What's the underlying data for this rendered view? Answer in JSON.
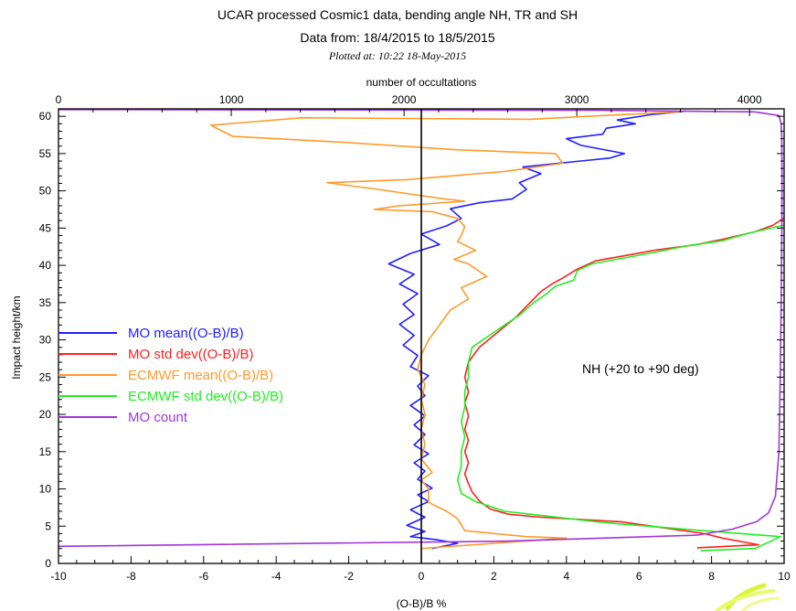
{
  "chart_data": {
    "type": "line",
    "title": "UCAR processed Cosmic1 data, bending angle NH, TR and SH",
    "subtitle": "Data from: 18/4/2015 to 18/5/2015",
    "plotted_at": "Plotted at: 10:22 18-May-2015",
    "xlabel": "(O-B)/B %",
    "ylabel": "Impact height/km",
    "x2label": "number of occultations",
    "xlim": [
      -10,
      10
    ],
    "ylim": [
      0,
      61
    ],
    "x2lim": [
      0,
      4200
    ],
    "xticks": [
      "-10",
      "-8",
      "-6",
      "-4",
      "-2",
      "0",
      "2",
      "4",
      "6",
      "8",
      "10"
    ],
    "yticks": [
      "0",
      "5",
      "10",
      "15",
      "20",
      "25",
      "30",
      "35",
      "40",
      "45",
      "50",
      "55",
      "60"
    ],
    "x2ticks": [
      "0",
      "1000",
      "2000",
      "3000",
      "4000"
    ],
    "vertical_zero_line": 0,
    "annotation": "NH (+20 to +90 deg)",
    "legend_position": "left",
    "series": [
      {
        "name": "MO mean((O-B)/B)",
        "color": "#2020ff",
        "axis": "bottom",
        "points": [
          [
            0.3,
            2
          ],
          [
            1.0,
            2.7
          ],
          [
            0.4,
            3.2
          ],
          [
            -0.3,
            3.6
          ],
          [
            0.1,
            4.3
          ],
          [
            -0.4,
            5.1
          ],
          [
            0.1,
            6.2
          ],
          [
            -0.3,
            7.2
          ],
          [
            0.2,
            8.3
          ],
          [
            -0.1,
            9.2
          ],
          [
            0.3,
            10.1
          ],
          [
            -0.1,
            11.3
          ],
          [
            0.1,
            12.4
          ],
          [
            -0.2,
            13.5
          ],
          [
            0.2,
            14.7
          ],
          [
            -0.2,
            15.9
          ],
          [
            0.1,
            17.3
          ],
          [
            -0.2,
            18.6
          ],
          [
            0.1,
            19.8
          ],
          [
            -0.3,
            21.2
          ],
          [
            0.1,
            22.5
          ],
          [
            -0.1,
            23.8
          ],
          [
            0.2,
            25.2
          ],
          [
            -0.3,
            26.4
          ],
          [
            -0.1,
            27.9
          ],
          [
            -0.5,
            29.3
          ],
          [
            -0.2,
            30.6
          ],
          [
            -0.6,
            32.1
          ],
          [
            -0.2,
            33.4
          ],
          [
            -0.5,
            34.8
          ],
          [
            -0.1,
            36.2
          ],
          [
            -0.6,
            37.5
          ],
          [
            -0.2,
            38.8
          ],
          [
            -0.9,
            40.2
          ],
          [
            -0.3,
            41.6
          ],
          [
            0.5,
            42.8
          ],
          [
            0.0,
            44.2
          ],
          [
            0.7,
            45.3
          ],
          [
            1.1,
            46.3
          ],
          [
            0.8,
            47.6
          ],
          [
            1.6,
            48.4
          ],
          [
            2.5,
            48.9
          ],
          [
            2.9,
            50.2
          ],
          [
            2.7,
            51.1
          ],
          [
            3.3,
            52.3
          ],
          [
            2.8,
            53.2
          ],
          [
            4.4,
            54.0
          ],
          [
            5.2,
            54.4
          ],
          [
            5.6,
            55.0
          ],
          [
            4.4,
            56.1
          ],
          [
            4.0,
            57.0
          ],
          [
            5.0,
            57.6
          ],
          [
            5.1,
            58.4
          ],
          [
            5.9,
            59.0
          ],
          [
            5.4,
            59.5
          ],
          [
            6.3,
            60.2
          ],
          [
            7.3,
            60.7
          ]
        ]
      },
      {
        "name": "MO std dev((O-B)/B)",
        "color": "#ff2020",
        "axis": "bottom",
        "points": [
          [
            7.6,
            2.1
          ],
          [
            9.3,
            2.5
          ],
          [
            8.3,
            3.4
          ],
          [
            7.8,
            4.0
          ],
          [
            5.5,
            5.6
          ],
          [
            3.3,
            6.2
          ],
          [
            2.4,
            6.6
          ],
          [
            1.9,
            7.3
          ],
          [
            1.6,
            8.4
          ],
          [
            1.4,
            9.6
          ],
          [
            1.3,
            10.7
          ],
          [
            1.2,
            12.0
          ],
          [
            1.3,
            13.5
          ],
          [
            1.2,
            15.0
          ],
          [
            1.3,
            16.5
          ],
          [
            1.2,
            18.0
          ],
          [
            1.3,
            19.8
          ],
          [
            1.2,
            21.5
          ],
          [
            1.3,
            23.0
          ],
          [
            1.2,
            25.0
          ],
          [
            1.3,
            27.0
          ],
          [
            1.6,
            29.0
          ],
          [
            2.1,
            31.0
          ],
          [
            2.6,
            33.0
          ],
          [
            3.0,
            35.0
          ],
          [
            3.3,
            36.5
          ],
          [
            3.6,
            37.5
          ],
          [
            3.9,
            38.3
          ],
          [
            4.3,
            39.5
          ],
          [
            4.8,
            40.6
          ],
          [
            5.5,
            41.2
          ],
          [
            6.4,
            42.0
          ],
          [
            7.6,
            42.8
          ],
          [
            8.3,
            43.5
          ],
          [
            9.2,
            44.5
          ],
          [
            9.7,
            45.4
          ],
          [
            10.0,
            46.4
          ]
        ]
      },
      {
        "name": "ECMWF mean((O-B)/B)",
        "color": "#ff9a2a",
        "axis": "bottom",
        "points": [
          [
            0.0,
            2.0
          ],
          [
            4.0,
            3.4
          ],
          [
            2.9,
            3.6
          ],
          [
            1.2,
            4.4
          ],
          [
            1.0,
            6.0
          ],
          [
            0.7,
            7.0
          ],
          [
            0.2,
            8.2
          ],
          [
            0.2,
            10.0
          ],
          [
            0.0,
            11.2
          ],
          [
            0.3,
            12.2
          ],
          [
            0.0,
            14.0
          ],
          [
            0.1,
            16.0
          ],
          [
            0.0,
            18.0
          ],
          [
            0.1,
            20.0
          ],
          [
            0.0,
            22.0
          ],
          [
            0.1,
            24.0
          ],
          [
            -0.1,
            26.0
          ],
          [
            0.0,
            28.0
          ],
          [
            0.2,
            30.0
          ],
          [
            0.5,
            32.0
          ],
          [
            0.8,
            34.0
          ],
          [
            1.3,
            35.5
          ],
          [
            1.1,
            37.0
          ],
          [
            1.8,
            38.5
          ],
          [
            1.3,
            40.2
          ],
          [
            0.9,
            40.8
          ],
          [
            1.5,
            42.0
          ],
          [
            1.0,
            43.2
          ],
          [
            1.1,
            44.0
          ],
          [
            1.2,
            45.2
          ],
          [
            1.0,
            46.3
          ],
          [
            0.3,
            47.2
          ],
          [
            -1.3,
            47.5
          ],
          [
            -0.6,
            48.0
          ],
          [
            1.2,
            48.6
          ],
          [
            0.5,
            49.0
          ],
          [
            -1.2,
            50.2
          ],
          [
            -2.6,
            51.1
          ],
          [
            -0.4,
            51.5
          ],
          [
            2.3,
            52.6
          ],
          [
            3.9,
            53.7
          ],
          [
            3.7,
            55.0
          ],
          [
            1.0,
            55.5
          ],
          [
            -2.1,
            56.5
          ],
          [
            -5.2,
            57.3
          ],
          [
            -5.8,
            58.8
          ],
          [
            -3.3,
            59.8
          ],
          [
            3.0,
            59.6
          ],
          [
            5.0,
            60.1
          ],
          [
            7.1,
            60.6
          ]
        ]
      },
      {
        "name": "ECMWF std dev((O-B)/B)",
        "color": "#22ee22",
        "axis": "bottom",
        "points": [
          [
            7.7,
            1.7
          ],
          [
            9.2,
            2.0
          ],
          [
            9.9,
            3.6
          ],
          [
            7.5,
            4.5
          ],
          [
            5.0,
            5.5
          ],
          [
            3.4,
            6.4
          ],
          [
            2.3,
            7.0
          ],
          [
            1.5,
            8.3
          ],
          [
            1.1,
            9.4
          ],
          [
            1.0,
            11.2
          ],
          [
            1.1,
            13.0
          ],
          [
            1.1,
            15.0
          ],
          [
            1.2,
            17.0
          ],
          [
            1.1,
            19.0
          ],
          [
            1.2,
            21.0
          ],
          [
            1.2,
            23.0
          ],
          [
            1.3,
            25.0
          ],
          [
            1.3,
            27.0
          ],
          [
            1.4,
            29.0
          ],
          [
            2.0,
            31.0
          ],
          [
            2.3,
            32.0
          ],
          [
            2.7,
            33.3
          ],
          [
            3.1,
            35.0
          ],
          [
            3.4,
            36.0
          ],
          [
            3.7,
            37.2
          ],
          [
            4.2,
            38.0
          ],
          [
            4.3,
            39.3
          ],
          [
            4.7,
            40.2
          ],
          [
            5.6,
            41.0
          ],
          [
            6.5,
            41.8
          ],
          [
            7.3,
            42.6
          ],
          [
            8.3,
            43.3
          ],
          [
            9.0,
            44.3
          ],
          [
            10.0,
            45.4
          ]
        ]
      },
      {
        "name": "MO count",
        "color": "#a235d8",
        "axis": "top",
        "points": [
          [
            0,
            2.3
          ],
          [
            2600,
            3.0
          ],
          [
            3700,
            3.8
          ],
          [
            3900,
            4.6
          ],
          [
            4040,
            5.6
          ],
          [
            4110,
            6.8
          ],
          [
            4150,
            9.0
          ],
          [
            4170,
            15.0
          ],
          [
            4178,
            25.0
          ],
          [
            4183,
            35.0
          ],
          [
            4187,
            45.0
          ],
          [
            4188,
            52.0
          ],
          [
            4186,
            57.0
          ],
          [
            4183,
            59.0
          ],
          [
            4170,
            60.1
          ],
          [
            4030,
            60.6
          ],
          [
            3100,
            60.8
          ],
          [
            0,
            60.9
          ]
        ]
      }
    ]
  }
}
